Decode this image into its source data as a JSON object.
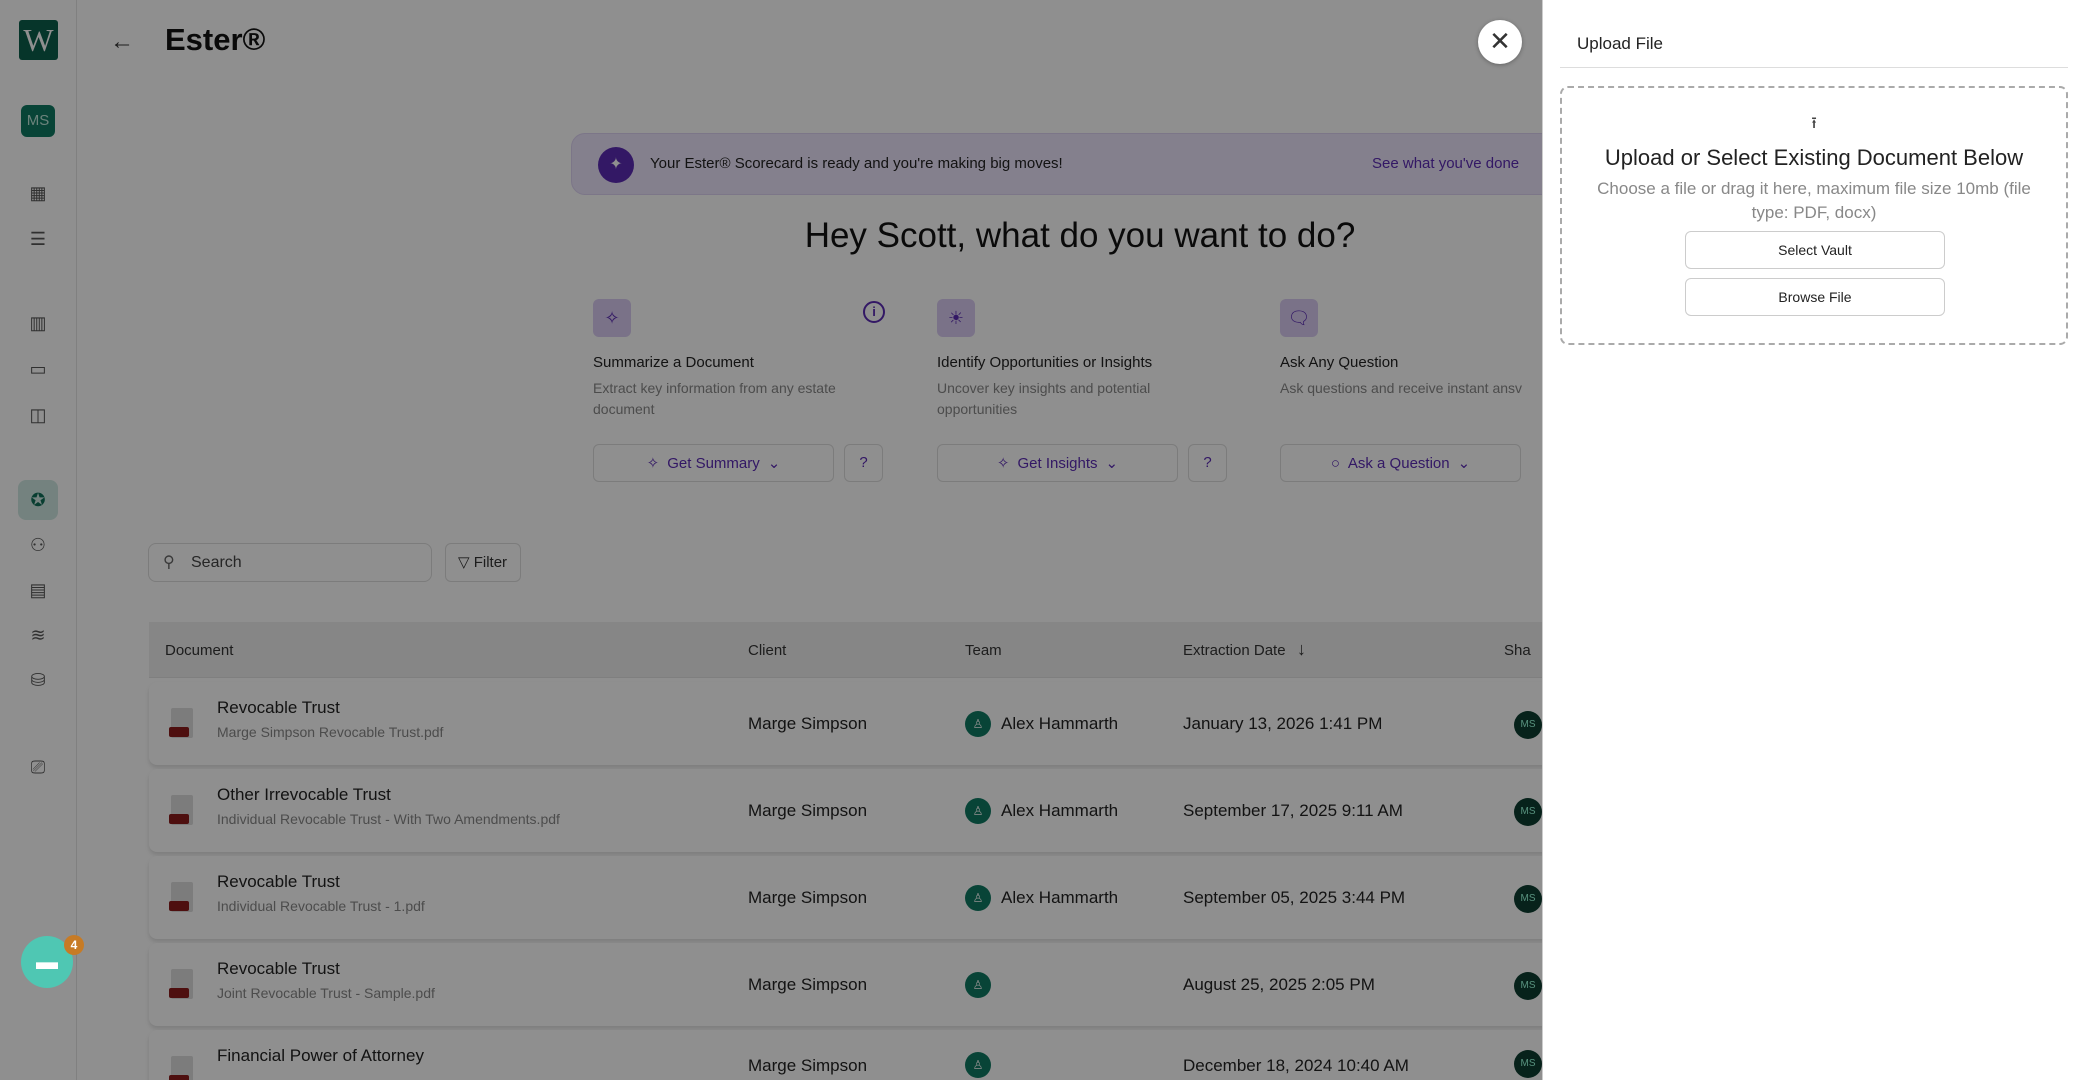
{
  "sidebar": {
    "logo": "W",
    "avatar": "MS",
    "icons": [
      "grid-icon",
      "checklist-icon",
      "building-icon",
      "folder-icon",
      "layout-icon",
      "ester-icon",
      "people-icon",
      "calculator-icon",
      "layers-icon",
      "database-icon",
      "presentation-icon"
    ],
    "active": "ester-icon"
  },
  "header": {
    "title": "Ester®",
    "back": "←"
  },
  "banner": {
    "text": "Your Ester® Scorecard is ready and you're making big moves!",
    "link": "See what you've done"
  },
  "greeting": "Hey Scott, what do you want to do?",
  "cards": [
    {
      "title": "Summarize a Document",
      "desc": "Extract key information from any estate document",
      "button": "Get Summary"
    },
    {
      "title": "Identify Opportunities or Insights",
      "desc": "Uncover key insights and potential opportunities",
      "button": "Get Insights"
    },
    {
      "title": "Ask Any Question",
      "desc": "Ask questions and receive instant ansv",
      "button": "Ask a Question"
    }
  ],
  "search": {
    "placeholder": "Search"
  },
  "filter": "Filter",
  "table": {
    "headers": [
      "Document",
      "Client",
      "Team",
      "Extraction Date",
      "Sha"
    ],
    "sort": "descending",
    "rows": [
      {
        "name": "Revocable Trust",
        "file": "Marge Simpson Revocable Trust.pdf",
        "client": "Marge Simpson",
        "team": "Alex Hammarth",
        "date": "January 13, 2026 1:41 PM",
        "shared": "MS"
      },
      {
        "name": "Other Irrevocable Trust",
        "file": "Individual Revocable Trust - With Two Amendments.pdf",
        "client": "Marge Simpson",
        "team": "Alex Hammarth",
        "date": "September 17, 2025 9:11 AM",
        "shared": "MS"
      },
      {
        "name": "Revocable Trust",
        "file": "Individual Revocable Trust - 1.pdf",
        "client": "Marge Simpson",
        "team": "Alex Hammarth",
        "date": "September 05, 2025 3:44 PM",
        "shared": "MS"
      },
      {
        "name": "Revocable Trust",
        "file": "Joint Revocable Trust - Sample.pdf",
        "client": "Marge Simpson",
        "team": "",
        "date": "August 25, 2025 2:05 PM",
        "shared": "MS"
      },
      {
        "name": "Financial Power of Attorney",
        "file": "",
        "client": "Marge Simpson",
        "team": "",
        "date": "December 18, 2024 10:40 AM",
        "shared": "MS"
      }
    ]
  },
  "chat": {
    "badge": "4"
  },
  "panel": {
    "title": "Upload File",
    "heading": "Upload or Select Existing Document Below",
    "desc": "Choose a file or drag it here, maximum file size 10mb (file type: PDF, docx)",
    "select_vault": "Select Vault",
    "browse": "Browse File"
  },
  "colors": {
    "brand": "#0b5e4b",
    "accent": "#5b2bb5"
  }
}
